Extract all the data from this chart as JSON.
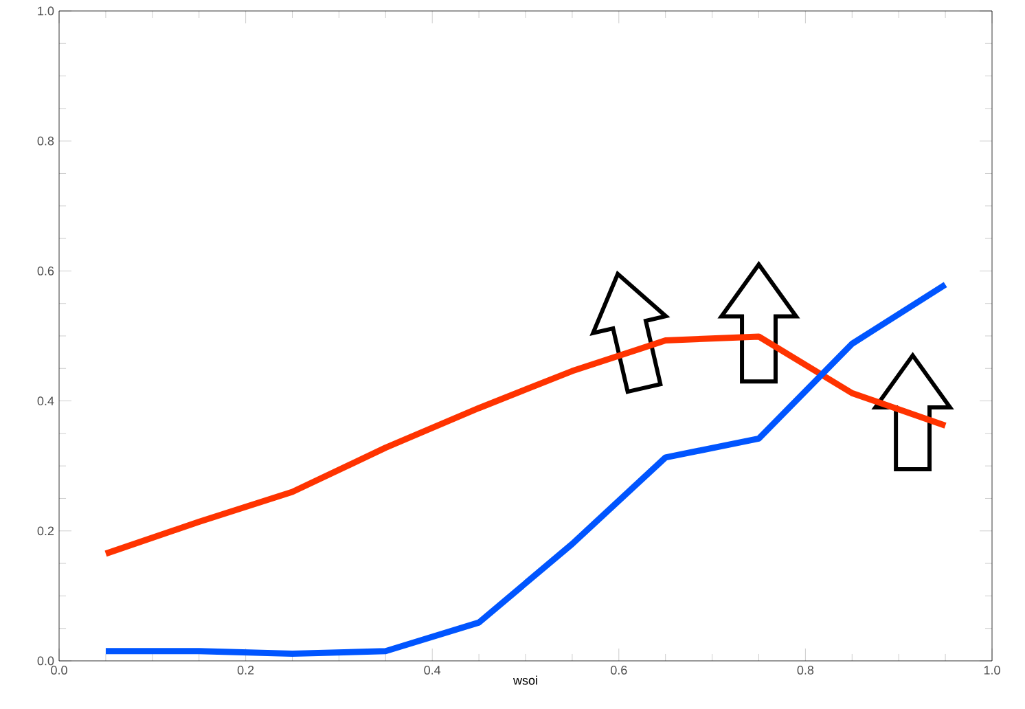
{
  "chart_data": {
    "type": "line",
    "xlabel": "wsoi",
    "x": [
      0.05,
      0.15,
      0.25,
      0.35,
      0.45,
      0.55,
      0.65,
      0.75,
      0.85,
      0.95
    ],
    "series": [
      {
        "color": "#ff3300",
        "values": [
          0.165,
          0.214,
          0.26,
          0.328,
          0.389,
          0.446,
          0.493,
          0.499,
          0.412,
          0.362
        ]
      },
      {
        "color": "#0055ff",
        "values": [
          0.015,
          0.015,
          0.011,
          0.015,
          0.059,
          0.18,
          0.313,
          0.342,
          0.488,
          0.579
        ]
      }
    ],
    "xlim": [
      0.0,
      1.0
    ],
    "ylim": [
      0.0,
      1.0
    ],
    "xticks": [
      {
        "value": 0,
        "label": "0.0"
      },
      0.2,
      0.4,
      0.6,
      0.8,
      {
        "value": 1,
        "label": "1.0"
      }
    ],
    "yticks": [
      {
        "value": 0,
        "label": "0.0"
      },
      0.2,
      0.4,
      0.6,
      0.8,
      {
        "value": 1,
        "label": "1.0"
      }
    ],
    "grid": false,
    "marker": "none",
    "line_style": "solid"
  }
}
